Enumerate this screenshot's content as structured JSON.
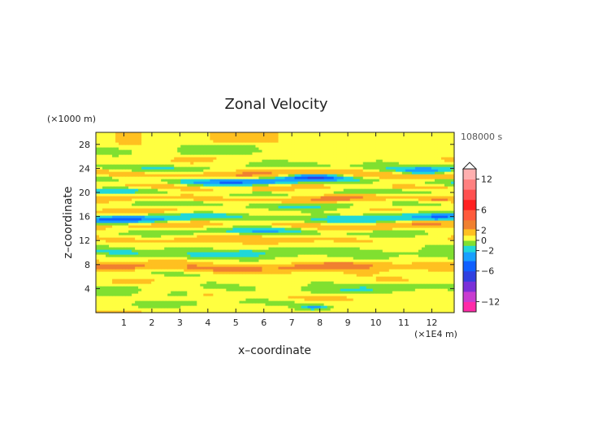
{
  "chart_data": {
    "type": "heatmap",
    "title": "Zonal Velocity",
    "xlabel": "x–coordinate",
    "ylabel": "z–coordinate",
    "x_unit": "(×1E4 m)",
    "y_unit": "(×1000 m)",
    "time_label": "108000 s",
    "xlim": [
      0,
      12.8
    ],
    "ylim": [
      0,
      30
    ],
    "x_ticks": [
      1,
      2,
      3,
      4,
      5,
      6,
      7,
      8,
      9,
      10,
      11,
      12
    ],
    "y_ticks": [
      4,
      8,
      12,
      16,
      20,
      24,
      28
    ],
    "grid": false,
    "colorbar": {
      "range": [
        -14,
        14
      ],
      "tick_values": [
        12,
        6,
        2,
        0,
        -2,
        -6,
        -12
      ],
      "tick_labels": [
        "12",
        "6",
        "2",
        "0",
        "−2",
        "−6",
        "−12"
      ],
      "levels": [
        {
          "value": -13,
          "color": "#ff2aa8"
        },
        {
          "value": -11,
          "color": "#c83cd0"
        },
        {
          "value": -9,
          "color": "#7a30d8"
        },
        {
          "value": -7,
          "color": "#3040e0"
        },
        {
          "value": -5,
          "color": "#1060ff"
        },
        {
          "value": -3,
          "color": "#18a0ff"
        },
        {
          "value": -1.5,
          "color": "#20d8d8"
        },
        {
          "value": -0.5,
          "color": "#80e030"
        },
        {
          "value": 0.5,
          "color": "#ffff40"
        },
        {
          "value": 1.5,
          "color": "#ffc020"
        },
        {
          "value": 3,
          "color": "#f08030"
        },
        {
          "value": 5,
          "color": "#ff5a3c"
        },
        {
          "value": 7,
          "color": "#ff2020"
        },
        {
          "value": 9,
          "color": "#ff5050"
        },
        {
          "value": 11,
          "color": "#ff8080"
        },
        {
          "value": 13,
          "color": "#ffb0b0"
        }
      ]
    },
    "field_bands": [
      {
        "z": 28.8,
        "u": 0.8,
        "amp": 0.7
      },
      {
        "z": 27.0,
        "u": 0.1,
        "amp": 0.8
      },
      {
        "z": 25.4,
        "u": 0.6,
        "amp": 0.7
      },
      {
        "z": 24.2,
        "u": -0.9,
        "amp": 1.2
      },
      {
        "z": 23.1,
        "u": 2.3,
        "amp": 1.2
      },
      {
        "z": 22.0,
        "u": -1.6,
        "amp": 1.5
      },
      {
        "z": 21.0,
        "u": 1.8,
        "amp": 1.1
      },
      {
        "z": 20.0,
        "u": -1.1,
        "amp": 1.3
      },
      {
        "z": 19.0,
        "u": 2.2,
        "amp": 1.0
      },
      {
        "z": 18.0,
        "u": -0.9,
        "amp": 1.2
      },
      {
        "z": 17.0,
        "u": 1.2,
        "amp": 1.0
      },
      {
        "z": 15.8,
        "u": -1.8,
        "amp": 1.2
      },
      {
        "z": 14.6,
        "u": 2.0,
        "amp": 1.0
      },
      {
        "z": 13.6,
        "u": -0.7,
        "amp": 1.1
      },
      {
        "z": 12.4,
        "u": 1.2,
        "amp": 0.9
      },
      {
        "z": 11.2,
        "u": 0.4,
        "amp": 0.8
      },
      {
        "z": 10.0,
        "u": -1.0,
        "amp": 0.9
      },
      {
        "z": 8.8,
        "u": 0.5,
        "amp": 0.8
      },
      {
        "z": 7.6,
        "u": 2.4,
        "amp": 0.9
      },
      {
        "z": 6.4,
        "u": 0.3,
        "amp": 0.8
      },
      {
        "z": 5.2,
        "u": 0.6,
        "amp": 0.8
      },
      {
        "z": 4.0,
        "u": -0.4,
        "amp": 0.9
      },
      {
        "z": 2.8,
        "u": 0.9,
        "amp": 0.8
      },
      {
        "z": 1.6,
        "u": 0.1,
        "amp": 0.8
      },
      {
        "z": 0.4,
        "u": 0.7,
        "amp": 0.6
      }
    ],
    "field_features": [
      {
        "x": 7.8,
        "z": 22.6,
        "sx": 0.9,
        "sz": 0.45,
        "u": -5.0
      },
      {
        "x": 5.2,
        "z": 21.8,
        "sx": 1.8,
        "sz": 0.5,
        "u": -2.5
      },
      {
        "x": 1.2,
        "z": 15.6,
        "sx": 1.4,
        "sz": 0.45,
        "u": -2.6
      },
      {
        "x": 12.2,
        "z": 15.9,
        "sx": 0.8,
        "sz": 0.45,
        "u": -2.5
      },
      {
        "x": 7.8,
        "z": 1.0,
        "sx": 0.5,
        "sz": 0.4,
        "u": -3.0
      },
      {
        "x": 3.0,
        "z": 3.2,
        "sx": 0.5,
        "sz": 0.35,
        "u": -1.8
      },
      {
        "x": 11.7,
        "z": 23.6,
        "sx": 0.7,
        "sz": 0.5,
        "u": -2.3
      },
      {
        "x": 6.0,
        "z": 13.5,
        "sx": 1.3,
        "sz": 0.6,
        "u": -1.6
      },
      {
        "x": 1.2,
        "z": 7.6,
        "sx": 1.2,
        "sz": 0.6,
        "u": 1.0
      },
      {
        "x": 9.0,
        "z": 7.8,
        "sx": 1.3,
        "sz": 0.55,
        "u": 0.8
      },
      {
        "x": 2.9,
        "z": 23.0,
        "sx": 1.3,
        "sz": 0.45,
        "u": 0.9
      },
      {
        "x": 7.5,
        "z": 12.4,
        "sx": 1.2,
        "sz": 0.5,
        "u": 1.1
      },
      {
        "x": 9.8,
        "z": 20.8,
        "sx": 1.6,
        "sz": 0.5,
        "u": 1.0
      },
      {
        "x": 2.6,
        "z": 19.2,
        "sx": 1.3,
        "sz": 0.5,
        "u": 0.9
      },
      {
        "x": 12.2,
        "z": 19.0,
        "sx": 0.6,
        "sz": 0.5,
        "u": 1.5
      },
      {
        "x": 1.0,
        "z": 10.0,
        "sx": 0.5,
        "sz": 0.4,
        "u": -1.2
      }
    ]
  }
}
